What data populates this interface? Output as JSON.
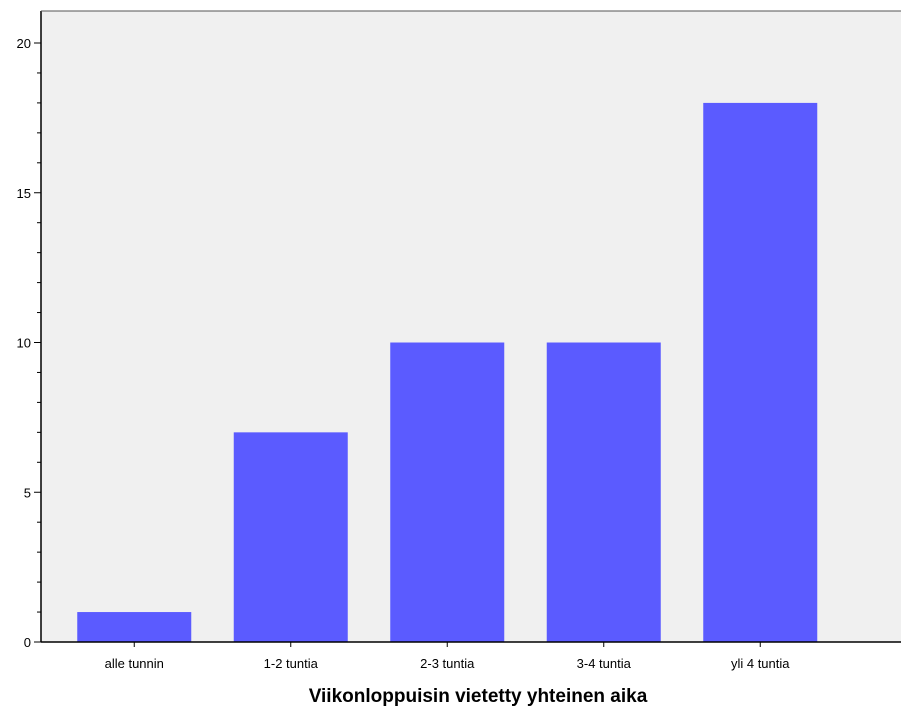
{
  "chart_data": {
    "type": "bar",
    "categories": [
      "alle tunnin",
      "1-2 tuntia",
      "2-3 tuntia",
      "3-4 tuntia",
      "yli 4 tuntia"
    ],
    "values": [
      1,
      7,
      10,
      10,
      18
    ],
    "title": "",
    "xlabel": "Viikonloppuisin vietetty yhteinen aika",
    "ylabel": "",
    "ylim": [
      0,
      21
    ],
    "yticks": [
      0,
      5,
      10,
      15,
      20
    ],
    "grid": false,
    "legend": "none",
    "colors": {
      "bar": "#5b5bff",
      "plot_background": "#f0f0f0",
      "axis": "#000000"
    }
  }
}
